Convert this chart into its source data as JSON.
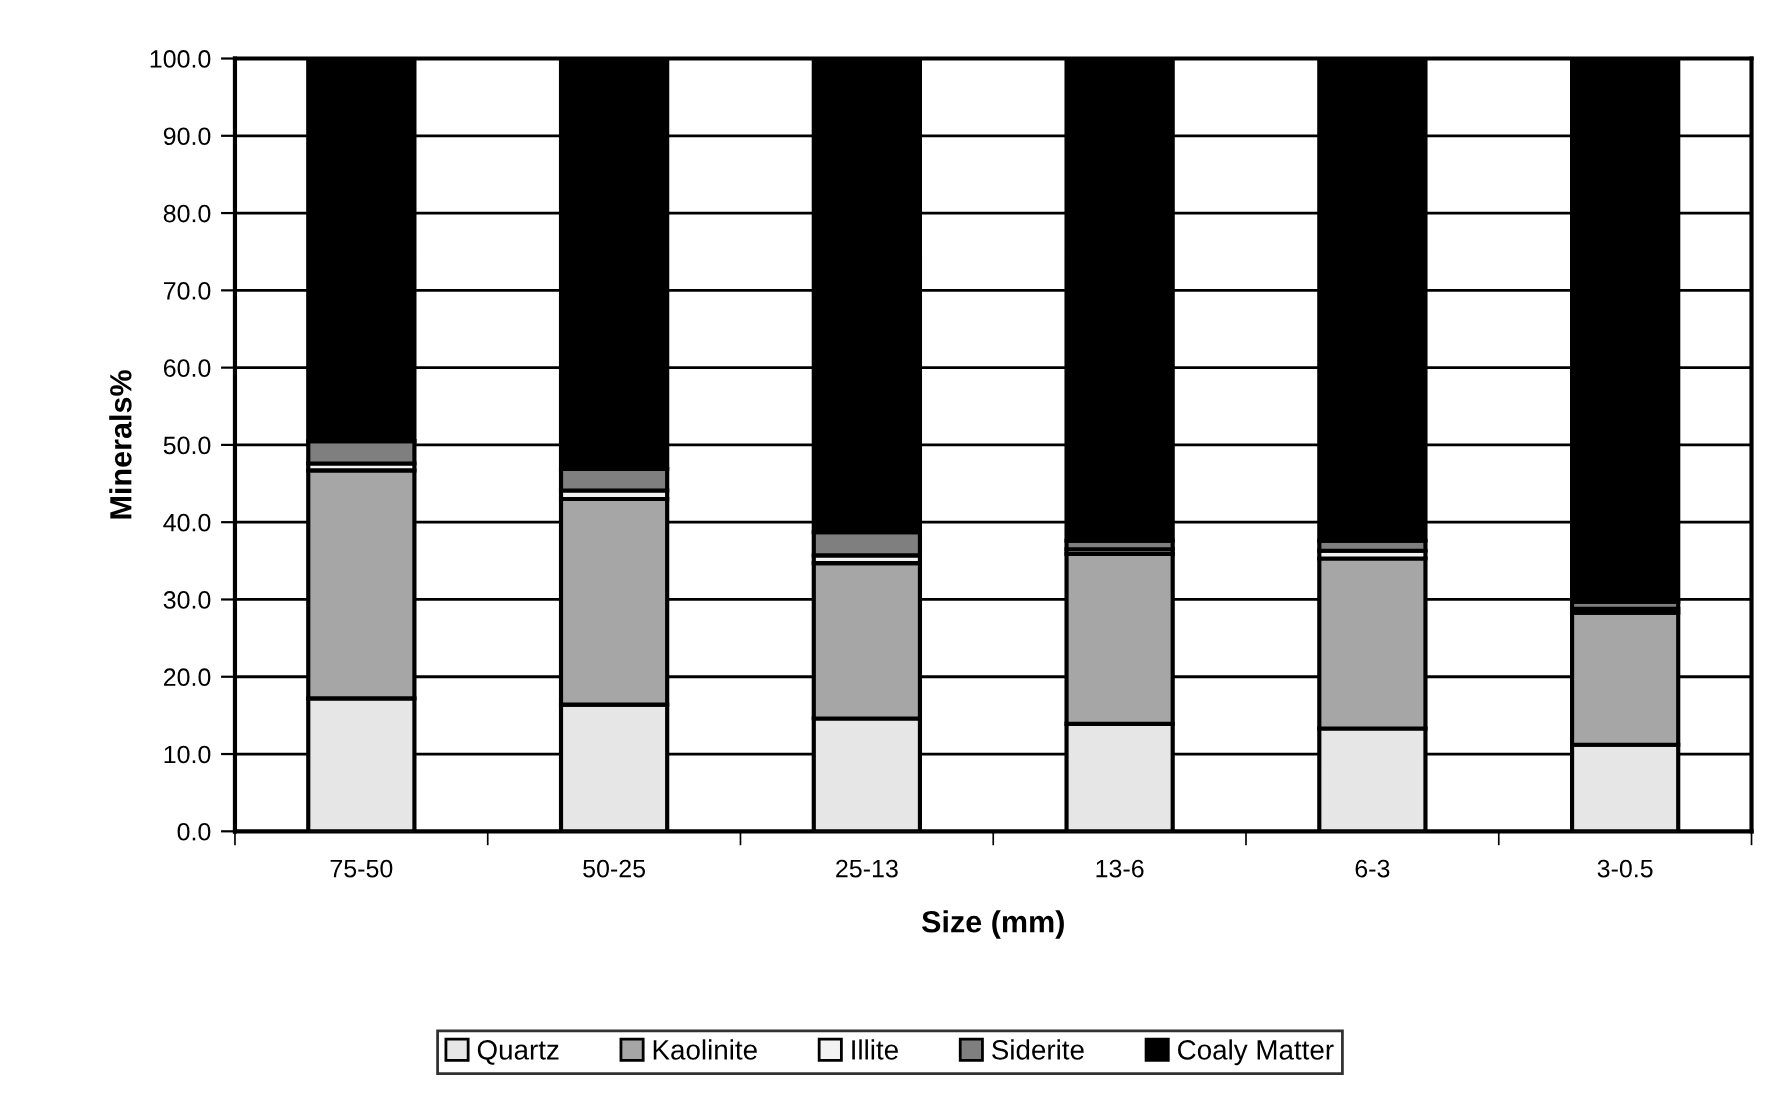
{
  "chart_data": {
    "type": "bar",
    "stacked": true,
    "xlabel": "Size (mm)",
    "ylabel": "Minerals%",
    "categories": [
      "75-50",
      "50-25",
      "25-13",
      "13-6",
      "6-3",
      "3-0.5"
    ],
    "series": [
      {
        "name": "Quartz",
        "color": "#e6e6e6",
        "values": [
          17.2,
          16.4,
          14.6,
          13.9,
          13.3,
          11.2
        ]
      },
      {
        "name": "Kaolinite",
        "color": "#a6a6a6",
        "values": [
          29.5,
          26.6,
          20.1,
          22.0,
          22.0,
          17.1
        ]
      },
      {
        "name": "Illite",
        "color": "#f2f2f2",
        "values": [
          0.9,
          1.1,
          1.0,
          0.6,
          1.0,
          0.5
        ]
      },
      {
        "name": "Siderite",
        "color": "#7f7f7f",
        "values": [
          2.9,
          2.8,
          3.0,
          1.1,
          1.3,
          0.9
        ]
      },
      {
        "name": "Coaly Matter",
        "color": "#000000",
        "values": [
          49.5,
          53.1,
          61.3,
          62.4,
          62.4,
          70.3
        ]
      }
    ],
    "ylim": [
      0,
      100
    ],
    "yticks": [
      {
        "value": 0,
        "label": "0.0"
      },
      {
        "value": 10,
        "label": "10.0"
      },
      {
        "value": 20,
        "label": "20.0"
      },
      {
        "value": 30,
        "label": "30.0"
      },
      {
        "value": 40,
        "label": "40.0"
      },
      {
        "value": 50,
        "label": "50.0"
      },
      {
        "value": 60,
        "label": "60.0"
      },
      {
        "value": 70,
        "label": "70.0"
      },
      {
        "value": 80,
        "label": "80.0"
      },
      {
        "value": 90,
        "label": "90.0"
      },
      {
        "value": 100,
        "label": "100.0"
      }
    ],
    "grid": "y",
    "legend": "bottom"
  }
}
